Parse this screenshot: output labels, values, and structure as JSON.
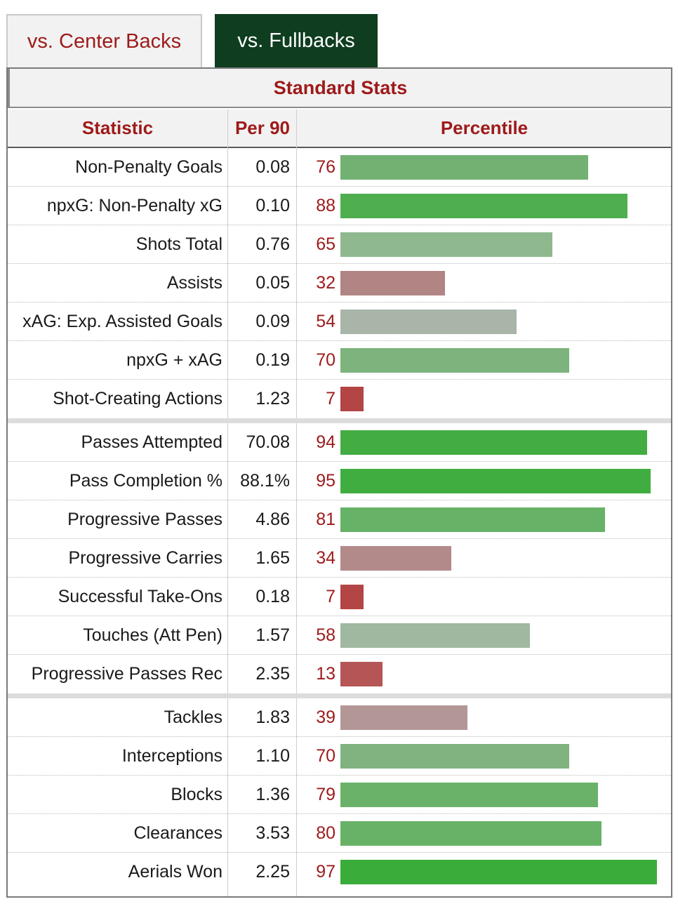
{
  "tabs": [
    {
      "label": "vs. Center Backs",
      "active": false
    },
    {
      "label": "vs. Fullbacks",
      "active": true
    }
  ],
  "table": {
    "title": "Standard Stats",
    "headers": {
      "statistic": "Statistic",
      "per90": "Per 90",
      "percentile": "Percentile"
    }
  },
  "colors": {
    "accent": "#9e1a1a",
    "active_tab_bg": "#0e3d1f"
  },
  "chart_data": {
    "type": "bar",
    "title": "Standard Stats",
    "xlabel": "Percentile",
    "xlim": [
      0,
      100
    ],
    "groups": [
      [
        {
          "stat": "Non-Penalty Goals",
          "per90": "0.08",
          "percentile": 76,
          "color": "#72b172"
        },
        {
          "stat": "npxG: Non-Penalty xG",
          "per90": "0.10",
          "percentile": 88,
          "color": "#4faf4f"
        },
        {
          "stat": "Shots Total",
          "per90": "0.76",
          "percentile": 65,
          "color": "#8fb88f"
        },
        {
          "stat": "Assists",
          "per90": "0.05",
          "percentile": 32,
          "color": "#b28585"
        },
        {
          "stat": "xAG: Exp. Assisted Goals",
          "per90": "0.09",
          "percentile": 54,
          "color": "#a8b5a8"
        },
        {
          "stat": "npxG + xAG",
          "per90": "0.19",
          "percentile": 70,
          "color": "#7db37d"
        },
        {
          "stat": "Shot-Creating Actions",
          "per90": "1.23",
          "percentile": 7,
          "color": "#b34545"
        }
      ],
      [
        {
          "stat": "Passes Attempted",
          "per90": "70.08",
          "percentile": 94,
          "color": "#43ad43"
        },
        {
          "stat": "Pass Completion %",
          "per90": "88.1%",
          "percentile": 95,
          "color": "#40ad40"
        },
        {
          "stat": "Progressive Passes",
          "per90": "4.86",
          "percentile": 81,
          "color": "#66b266"
        },
        {
          "stat": "Progressive Carries",
          "per90": "1.65",
          "percentile": 34,
          "color": "#b38a8a"
        },
        {
          "stat": "Successful Take-Ons",
          "per90": "0.18",
          "percentile": 7,
          "color": "#b34545"
        },
        {
          "stat": "Touches (Att Pen)",
          "per90": "1.57",
          "percentile": 58,
          "color": "#9fb89f"
        },
        {
          "stat": "Progressive Passes Rec",
          "per90": "2.35",
          "percentile": 13,
          "color": "#b55555"
        }
      ],
      [
        {
          "stat": "Tackles",
          "per90": "1.83",
          "percentile": 39,
          "color": "#b39797"
        },
        {
          "stat": "Interceptions",
          "per90": "1.10",
          "percentile": 70,
          "color": "#80b380"
        },
        {
          "stat": "Blocks",
          "per90": "1.36",
          "percentile": 79,
          "color": "#6ab26a"
        },
        {
          "stat": "Clearances",
          "per90": "3.53",
          "percentile": 80,
          "color": "#68b268"
        },
        {
          "stat": "Aerials Won",
          "per90": "2.25",
          "percentile": 97,
          "color": "#3aac3a"
        }
      ]
    ]
  }
}
